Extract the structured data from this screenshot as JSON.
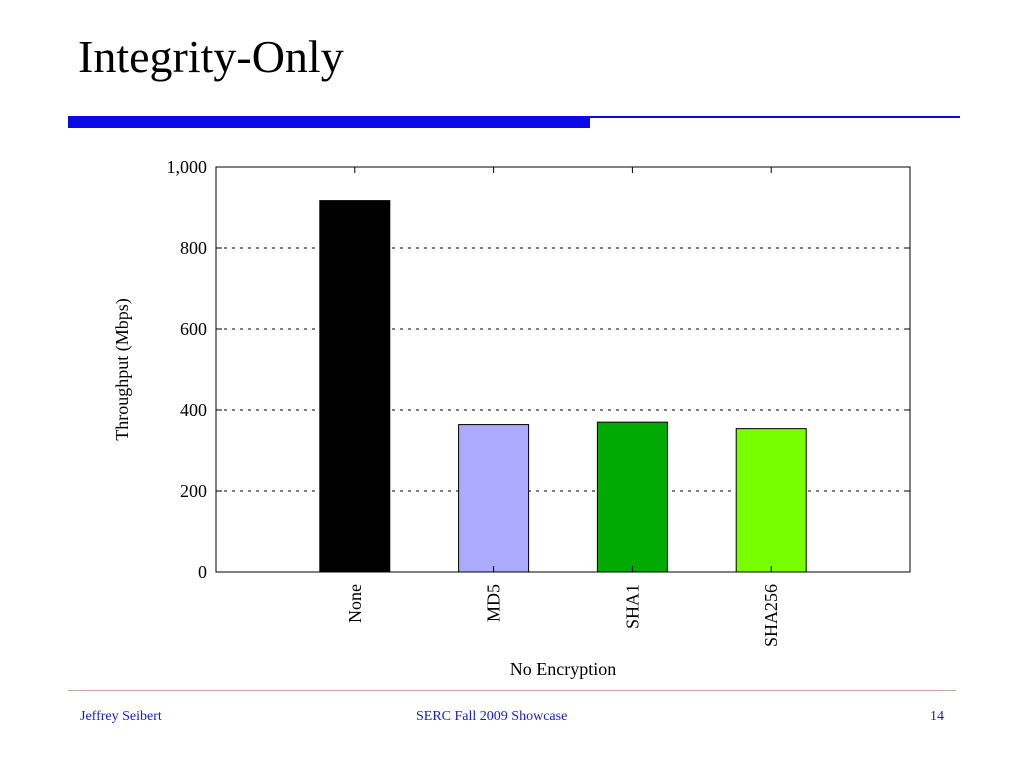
{
  "slide": {
    "title": "Integrity-Only",
    "footer_left": "Jeffrey Seibert",
    "footer_center": "SERC Fall 2009 Showcase",
    "footer_right": "14",
    "accent_color": "#0a0ae6",
    "footer_color": "#1a1acc"
  },
  "chart_data": {
    "type": "bar",
    "categories": [
      "None",
      "MD5",
      "SHA1",
      "SHA256"
    ],
    "values": [
      917,
      364,
      370,
      354
    ],
    "colors": [
      "#000000",
      "#aaaaff",
      "#00aa00",
      "#77ff00"
    ],
    "xlabel": "No Encryption",
    "ylabel": "Throughput (Mbps)",
    "ylim": [
      0,
      1000
    ],
    "yticks": [
      0,
      200,
      400,
      600,
      800,
      1000
    ],
    "ytick_labels": [
      "0",
      "200",
      "400",
      "600",
      "800",
      "1,000"
    ],
    "grid": "horizontal dashed"
  }
}
